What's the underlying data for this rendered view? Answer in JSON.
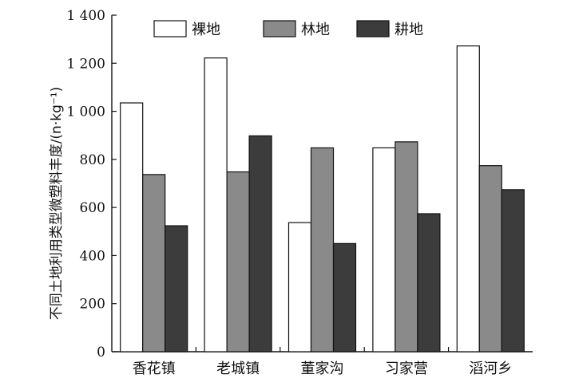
{
  "chart_data": {
    "type": "bar",
    "ylabel": "不同土地利用类型微塑料丰度/(n·kg⁻¹)",
    "categories": [
      "香花镇",
      "老城镇",
      "董家沟",
      "习家营",
      "滔河乡"
    ],
    "series": [
      {
        "name": "裸地",
        "values": [
          1035,
          1222,
          537,
          848,
          1272
        ],
        "color": "#ffffff"
      },
      {
        "name": "林地",
        "values": [
          737,
          748,
          848,
          873,
          774
        ],
        "color": "#8a8a8a"
      },
      {
        "name": "耕地",
        "values": [
          524,
          898,
          450,
          574,
          674
        ],
        "color": "#3c3c3c"
      }
    ],
    "ylim": [
      0,
      1400
    ],
    "yticks": [
      0,
      200,
      400,
      600,
      800,
      1000,
      1200,
      1400
    ],
    "ytick_labels": [
      "0",
      "200",
      "400",
      "600",
      "800",
      "1 000",
      "1 200",
      "1 400"
    ],
    "legend_position": "top",
    "grid": false
  }
}
